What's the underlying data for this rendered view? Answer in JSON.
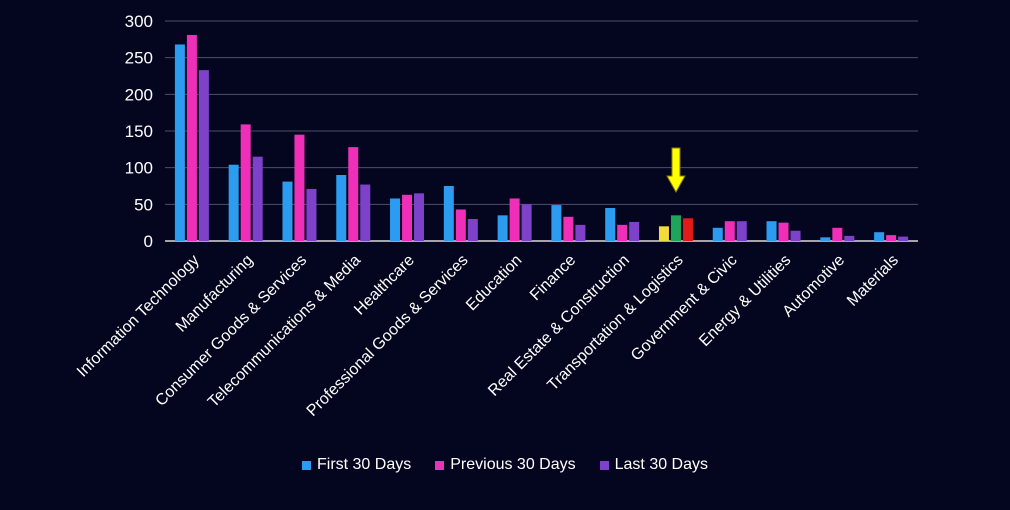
{
  "chart_data": {
    "type": "bar",
    "categories": [
      "Information Technology",
      "Manufacturing",
      "Consumer Goods & Services",
      "Telecommunications & Media",
      "Healthcare",
      "Professional Goods & Services",
      "Education",
      "Finance",
      "Real Estate & Construction",
      "Transportation & Logistics",
      "Government & Civic",
      "Energy & Utilities",
      "Automotive",
      "Materials"
    ],
    "series": [
      {
        "name": "First 30 Days",
        "color": "#2b9cf0",
        "values": [
          268,
          104,
          81,
          90,
          58,
          75,
          35,
          49,
          45,
          20,
          18,
          27,
          5,
          12
        ]
      },
      {
        "name": "Previous 30 Days",
        "color": "#ef2fb8",
        "values": [
          281,
          159,
          145,
          128,
          63,
          43,
          58,
          33,
          22,
          35,
          27,
          25,
          18,
          8
        ]
      },
      {
        "name": "Last 30 Days",
        "color": "#7d42c9",
        "values": [
          233,
          115,
          71,
          77,
          65,
          30,
          50,
          22,
          26,
          31,
          27,
          14,
          7,
          6
        ]
      }
    ],
    "highlight": {
      "category": "Transportation & Logistics",
      "bar_colors": [
        "#f2dc3b",
        "#1fa45b",
        "#e11a1a"
      ],
      "arrow_color": "#ffff00"
    },
    "ylim": [
      0,
      300
    ],
    "yticks": [
      0,
      50,
      100,
      150,
      200,
      250,
      300
    ],
    "grid": true,
    "legend_position": "bottom"
  }
}
